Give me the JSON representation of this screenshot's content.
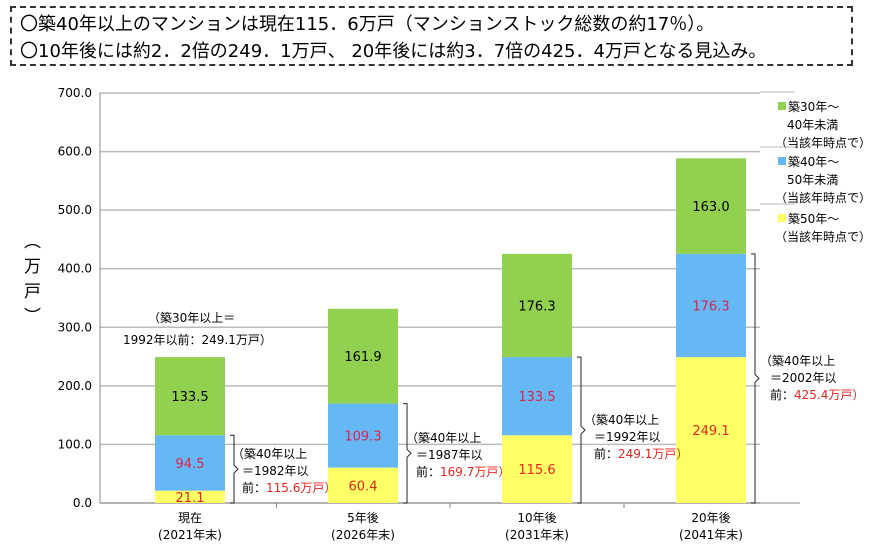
{
  "header": {
    "lines": [
      "〇築40年以上のマンションは現在115．6万戸（マンションストック総数の約17％）。",
      "〇10年後には約2．2倍の249．1万戸、 20年後には約3．7倍の425．4万戸となる見込み。"
    ]
  },
  "chart_data": {
    "type": "bar",
    "stacked": true,
    "ylabel": "（万戸）",
    "ylim": [
      0,
      700
    ],
    "yticks": [
      "0.0",
      "100.0",
      "200.0",
      "300.0",
      "400.0",
      "500.0",
      "600.0",
      "700.0"
    ],
    "grid": true,
    "categories": [
      [
        "現在",
        "(2021年末)"
      ],
      [
        "5年後",
        "(2026年末)"
      ],
      [
        "10年後",
        "(2031年末)"
      ],
      [
        "20年後",
        "(2041年末)"
      ]
    ],
    "series": [
      {
        "name": "築50年～\n(当該年時点で)",
        "color": "#FFFF66",
        "label_color": "#E8231E",
        "values": [
          21.1,
          60.4,
          115.6,
          249.1
        ]
      },
      {
        "name": "築40年～\n50年未満\n(当該年時点で)",
        "color": "#66B8F5",
        "label_color": "#D9234A",
        "values": [
          94.5,
          109.3,
          133.5,
          176.3
        ]
      },
      {
        "name": "築30年～\n40年未満\n(当該年時点で)",
        "color": "#92D050",
        "label_color": "#000000",
        "values": [
          133.5,
          161.9,
          176.3,
          163.0
        ]
      }
    ],
    "legend_position": "right",
    "annotations": [
      {
        "lines": [
          "（築30年以上＝",
          "1992年以前：249.1万戸）"
        ],
        "red": ""
      },
      {
        "lines": [
          "（築40年以上",
          "＝1982年以",
          "前："
        ],
        "red": "115.6万戸）"
      },
      {
        "lines": [
          "（築40年以上",
          "＝1987年以",
          "前："
        ],
        "red": "169.7万戸）"
      },
      {
        "lines": [
          "（築40年以上",
          "＝1992年以",
          "前："
        ],
        "red": "249.1万戸）"
      },
      {
        "lines": [
          "（築40年以上",
          "＝2002年以",
          "前："
        ],
        "red": "425.4万戸）"
      }
    ]
  }
}
